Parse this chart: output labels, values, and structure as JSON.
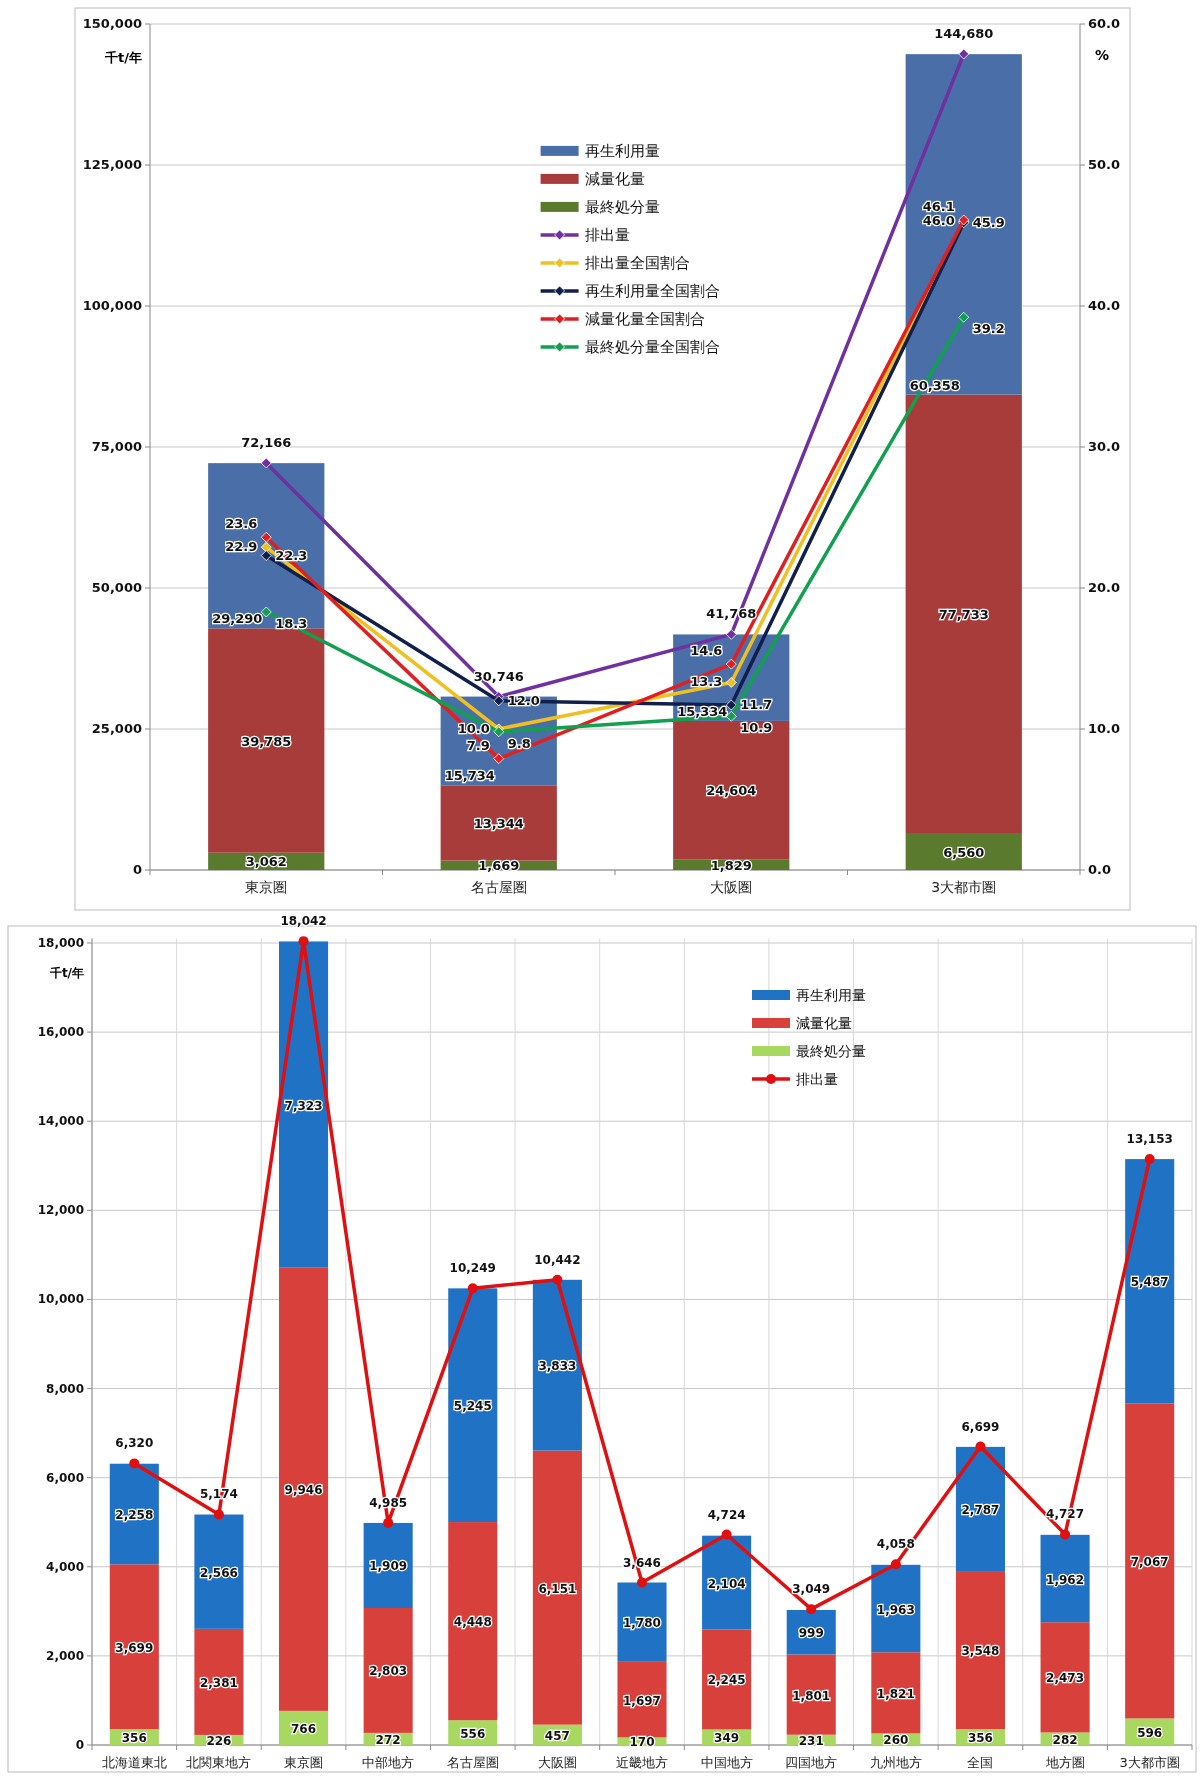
{
  "chart_data": [
    {
      "type": "bar",
      "stacked": true,
      "categories": [
        "東京圏",
        "名古屋圏",
        "大阪圏",
        "3大都市圏"
      ],
      "ylabel": "千t/年",
      "y2label": "%",
      "ylim": [
        0,
        150000
      ],
      "yticks": [
        {
          "value": 0,
          "label": "0"
        },
        {
          "value": 25000,
          "label": "25,000"
        },
        {
          "value": 50000,
          "label": "50,000"
        },
        {
          "value": 75000,
          "label": "75,000"
        },
        {
          "value": 100000,
          "label": "100,000"
        },
        {
          "value": 125000,
          "label": "125,000"
        },
        {
          "value": 150000,
          "label": "150,000"
        }
      ],
      "y2lim": [
        0,
        60
      ],
      "y2ticks": [
        {
          "value": 0,
          "label": "0.0"
        },
        {
          "value": 10,
          "label": "10.0"
        },
        {
          "value": 20,
          "label": "20.0"
        },
        {
          "value": 30,
          "label": "30.0"
        },
        {
          "value": 40,
          "label": "40.0"
        },
        {
          "value": 50,
          "label": "50.0"
        },
        {
          "value": 60,
          "label": "60.0"
        }
      ],
      "grid": "y",
      "legend": "top",
      "marker": "diamond",
      "series": [
        {
          "name": "最終処分量",
          "type": "bar",
          "color": "#5a7a2e",
          "values": [
            3062,
            1669,
            1829,
            6560
          ],
          "value_labels": [
            "3,062",
            "1,669",
            "1,829",
            "6,560"
          ]
        },
        {
          "name": "減量化量",
          "type": "bar",
          "color": "#a83c3a",
          "values": [
            39785,
            13344,
            24604,
            77733
          ],
          "value_labels": [
            "39,785",
            "13,344",
            "24,604",
            "77,733"
          ]
        },
        {
          "name": "再生利用量",
          "type": "bar",
          "color": "#4a6fa8",
          "values": [
            29290,
            15734,
            15334,
            60358
          ],
          "value_labels": [
            "29,290",
            "15,734",
            "15,334",
            "60,358"
          ]
        },
        {
          "name": "排出量",
          "type": "line",
          "color": "#7030a0",
          "values": [
            72166,
            30746,
            41768,
            144680
          ],
          "value_labels": [
            "72,166",
            "30,746",
            "41,768",
            "144,680"
          ]
        },
        {
          "name": "排出量全国割合",
          "type": "line",
          "axis": "y2",
          "color": "#f0c020",
          "values": [
            22.9,
            10.0,
            13.3,
            46.0
          ],
          "value_labels": [
            "22.9",
            "10.0",
            "13.3",
            "46.0"
          ]
        },
        {
          "name": "再生利用量全国割合",
          "type": "line",
          "axis": "y2",
          "color": "#10204a",
          "values": [
            22.3,
            12.0,
            11.7,
            45.9
          ],
          "value_labels": [
            "22.3",
            "12.0",
            "11.7",
            "45.9"
          ]
        },
        {
          "name": "減量化量全国割合",
          "type": "line",
          "axis": "y2",
          "color": "#e02020",
          "values": [
            23.6,
            7.9,
            14.6,
            46.1
          ],
          "value_labels": [
            "23.6",
            "7.9",
            "14.6",
            "46.1"
          ]
        },
        {
          "name": "最終処分量全国割合",
          "type": "line",
          "axis": "y2",
          "color": "#10a050",
          "values": [
            18.3,
            9.8,
            10.9,
            39.2
          ],
          "value_labels": [
            "18.3",
            "9.8",
            "10.9",
            "39.2"
          ]
        }
      ]
    },
    {
      "type": "bar",
      "stacked": true,
      "categories": [
        "北海道東北",
        "北関東地方",
        "東京圏",
        "中部地方",
        "名古屋圏",
        "大阪圏",
        "近畿地方",
        "中国地方",
        "四国地方",
        "九州地方",
        "全国",
        "地方圏",
        "3大都市圏"
      ],
      "ylabel": "千t/年",
      "ylim": [
        0,
        18100
      ],
      "yticks": [
        {
          "value": 0,
          "label": "0"
        },
        {
          "value": 2000,
          "label": "2,000"
        },
        {
          "value": 4000,
          "label": "4,000"
        },
        {
          "value": 6000,
          "label": "6,000"
        },
        {
          "value": 8000,
          "label": "8,000"
        },
        {
          "value": 10000,
          "label": "10,000"
        },
        {
          "value": 12000,
          "label": "12,000"
        },
        {
          "value": 14000,
          "label": "14,000"
        },
        {
          "value": 16000,
          "label": "16,000"
        },
        {
          "value": 18000,
          "label": "18,000"
        }
      ],
      "grid": true,
      "legend": "top right",
      "marker": "circle",
      "series": [
        {
          "name": "最終処分量",
          "type": "bar",
          "color": "#a8d860",
          "values": [
            356,
            226,
            766,
            272,
            556,
            457,
            170,
            349,
            231,
            260,
            356,
            282,
            596
          ],
          "value_labels": [
            "356",
            "226",
            "766",
            "272",
            "556",
            "457",
            "170",
            "349",
            "231",
            "260",
            "356",
            "282",
            "596"
          ]
        },
        {
          "name": "減量化量",
          "type": "bar",
          "color": "#d8403c",
          "values": [
            3699,
            2381,
            9946,
            2803,
            4448,
            6151,
            1697,
            2245,
            1801,
            1821,
            3548,
            2473,
            7067
          ],
          "value_labels": [
            "3,699",
            "2,381",
            "9,946",
            "2,803",
            "4,448",
            "6,151",
            "1,697",
            "2,245",
            "1,801",
            "1,821",
            "3,548",
            "2,473",
            "7,067"
          ]
        },
        {
          "name": "再生利用量",
          "type": "bar",
          "color": "#1f72c4",
          "values": [
            2258,
            2566,
            7323,
            1909,
            5245,
            3833,
            1780,
            2104,
            999,
            1963,
            2787,
            1962,
            5487
          ],
          "value_labels": [
            "2,258",
            "2,566",
            "7,323",
            "1,909",
            "5,245",
            "3,833",
            "1,780",
            "2,104",
            "999",
            "1,963",
            "2,787",
            "1,962",
            "5,487"
          ]
        },
        {
          "name": "排出量",
          "type": "line",
          "color": "#e01010",
          "values": [
            6320,
            5174,
            18042,
            4985,
            10249,
            10442,
            3646,
            4724,
            3049,
            4058,
            6699,
            4727,
            13153
          ],
          "value_labels": [
            "6,320",
            "5,174",
            "18,042",
            "4,985",
            "10,249",
            "10,442",
            "3,646",
            "4,724",
            "3,049",
            "4,058",
            "6,699",
            "4,727",
            "13,153"
          ]
        }
      ]
    }
  ]
}
